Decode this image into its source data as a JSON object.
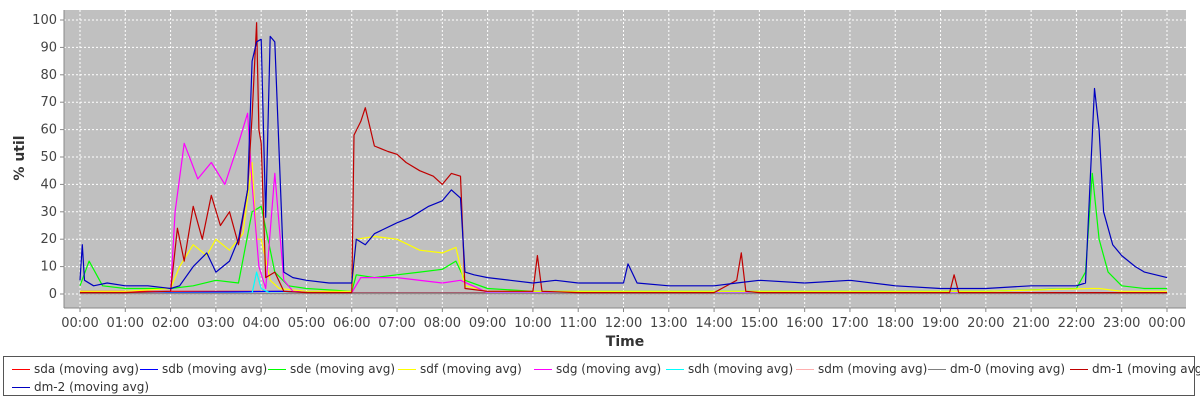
{
  "chart_data": {
    "type": "line",
    "xlabel": "Time",
    "ylabel": "% util",
    "ylim": [
      0,
      100
    ],
    "xlim": [
      0,
      24
    ],
    "x_tick_labels": [
      "00:00",
      "01:00",
      "02:00",
      "03:00",
      "04:00",
      "05:00",
      "06:00",
      "07:00",
      "08:00",
      "09:00",
      "10:00",
      "11:00",
      "12:00",
      "13:00",
      "14:00",
      "15:00",
      "16:00",
      "17:00",
      "18:00",
      "19:00",
      "20:00",
      "21:00",
      "22:00",
      "23:00",
      "00:00"
    ],
    "y_tick_labels": [
      "0",
      "10",
      "20",
      "30",
      "40",
      "50",
      "60",
      "70",
      "80",
      "90",
      "100"
    ],
    "grid": true,
    "background": "#c0c0c0",
    "legend_position": "bottom",
    "series": [
      {
        "name": "sda (moving avg)",
        "color": "#ff0000",
        "x": [
          0,
          2.0,
          3.5,
          4.4,
          6.0,
          8.5,
          12,
          16,
          20,
          24
        ],
        "y": [
          1,
          1,
          1,
          1,
          0.5,
          0.5,
          0.5,
          0.5,
          0.5,
          0.5
        ]
      },
      {
        "name": "sdb (moving avg)",
        "color": "#0000ff",
        "x": [
          0,
          1.0,
          2.0,
          4.4,
          6.0,
          8.5,
          12,
          16,
          20,
          24
        ],
        "y": [
          0.3,
          0.3,
          0.5,
          1,
          0.3,
          0.3,
          0.3,
          0.3,
          0.3,
          0.3
        ]
      },
      {
        "name": "sde (moving avg)",
        "color": "#00ff00",
        "x": [
          0,
          0.2,
          0.5,
          1.0,
          2.0,
          2.5,
          3.0,
          3.5,
          3.8,
          4.0,
          4.3,
          4.6,
          5.0,
          6.0,
          6.1,
          6.5,
          7.0,
          7.5,
          8.0,
          8.3,
          8.5,
          9.0,
          10.0,
          12.0,
          14.0,
          16.0,
          18.0,
          20.0,
          22.0,
          22.2,
          22.35,
          22.5,
          22.7,
          23.0,
          23.5,
          24.0
        ],
        "y": [
          3,
          12,
          3,
          2,
          2,
          3,
          5,
          4,
          30,
          32,
          8,
          3,
          2,
          1,
          7,
          6,
          7,
          8,
          9,
          12,
          5,
          2,
          1,
          1,
          1,
          1,
          1,
          1,
          2,
          8,
          44,
          20,
          8,
          3,
          2,
          2
        ]
      },
      {
        "name": "sdf (moving avg)",
        "color": "#ffff00",
        "x": [
          0,
          1.0,
          2.0,
          2.2,
          2.5,
          2.8,
          3.0,
          3.3,
          3.6,
          3.8,
          3.9,
          4.0,
          4.2,
          4.4,
          5.0,
          6.0,
          6.1,
          6.5,
          7.0,
          7.5,
          8.0,
          8.3,
          8.5,
          9.0,
          12.0,
          16.0,
          20.0,
          22.3,
          22.5,
          23.0,
          24.0
        ],
        "y": [
          1,
          1,
          2,
          10,
          18,
          14,
          20,
          16,
          22,
          48,
          20,
          20,
          5,
          2,
          1,
          1,
          20,
          21,
          20,
          16,
          15,
          17,
          3,
          1,
          1,
          1,
          1,
          2,
          2,
          1,
          1
        ]
      },
      {
        "name": "sdg (moving avg)",
        "color": "#ff00ff",
        "x": [
          0,
          1.0,
          2.0,
          2.1,
          2.3,
          2.6,
          2.9,
          3.2,
          3.5,
          3.7,
          3.8,
          3.95,
          4.1,
          4.3,
          4.5,
          4.7,
          5.0,
          6.0,
          6.2,
          7.0,
          8.0,
          8.4,
          9.0,
          12.0,
          16.0,
          20.0,
          24.0
        ],
        "y": [
          0.5,
          0.5,
          1,
          30,
          55,
          42,
          48,
          40,
          55,
          66,
          40,
          10,
          2,
          44,
          5,
          1,
          0.5,
          0.5,
          6,
          6,
          4,
          5,
          0.5,
          0.5,
          0.5,
          0.5,
          0.5
        ]
      },
      {
        "name": "sdh (moving avg)",
        "color": "#00ffff",
        "x": [
          0,
          3.8,
          3.9,
          4.0,
          4.2,
          12.0,
          24.0
        ],
        "y": [
          0.3,
          0.3,
          8,
          2,
          0.3,
          0.3,
          0.3
        ]
      },
      {
        "name": "sdm (moving avg)",
        "color": "#ffafaf",
        "x": [
          0,
          24
        ],
        "y": [
          0.2,
          0.2
        ]
      },
      {
        "name": "dm-0 (moving avg)",
        "color": "#808080",
        "x": [
          0,
          24
        ],
        "y": [
          0.1,
          0.1
        ]
      },
      {
        "name": "dm-1 (moving avg)",
        "color": "#c00000",
        "x": [
          0,
          1.0,
          2.0,
          2.15,
          2.3,
          2.5,
          2.7,
          2.9,
          3.1,
          3.3,
          3.5,
          3.7,
          3.8,
          3.9,
          3.95,
          4.0,
          4.1,
          4.3,
          4.5,
          5.0,
          6.0,
          6.05,
          6.2,
          6.3,
          6.5,
          6.8,
          7.0,
          7.2,
          7.5,
          7.8,
          8.0,
          8.2,
          8.4,
          8.5,
          9.0,
          10.0,
          10.1,
          10.2,
          11.0,
          12.0,
          14.0,
          14.5,
          14.6,
          14.7,
          15.0,
          18.0,
          19.2,
          19.3,
          19.4,
          20.0,
          24.0
        ],
        "y": [
          0.5,
          0.5,
          1,
          24,
          12,
          32,
          20,
          36,
          25,
          30,
          18,
          38,
          65,
          99,
          60,
          55,
          6,
          8,
          1,
          0.5,
          0.5,
          58,
          63,
          68,
          54,
          52,
          51,
          48,
          45,
          43,
          40,
          44,
          43,
          2,
          1,
          1,
          14,
          1,
          0.5,
          0.5,
          0.5,
          5,
          15,
          1,
          0.5,
          0.5,
          0.5,
          7,
          0.5,
          0.5,
          0.5
        ]
      },
      {
        "name": "dm-2 (moving avg)",
        "color": "#0000c0",
        "x": [
          0,
          0.05,
          0.1,
          0.3,
          0.6,
          1.0,
          1.5,
          2.0,
          2.2,
          2.5,
          2.8,
          3.0,
          3.3,
          3.5,
          3.7,
          3.8,
          3.9,
          4.0,
          4.1,
          4.2,
          4.3,
          4.5,
          4.7,
          5.0,
          5.5,
          6.0,
          6.1,
          6.3,
          6.5,
          7.0,
          7.3,
          7.5,
          7.7,
          8.0,
          8.2,
          8.4,
          8.5,
          8.7,
          9.0,
          9.5,
          10.0,
          10.5,
          11.0,
          11.5,
          12.0,
          12.1,
          12.3,
          13.0,
          14.0,
          14.5,
          15.0,
          16.0,
          17.0,
          18.0,
          19.0,
          20.0,
          21.0,
          22.0,
          22.2,
          22.3,
          22.4,
          22.5,
          22.6,
          22.8,
          23.0,
          23.3,
          23.5,
          24.0
        ],
        "y": [
          5,
          18,
          5,
          3,
          4,
          3,
          3,
          2,
          3,
          10,
          15,
          8,
          12,
          20,
          38,
          85,
          92,
          93,
          28,
          94,
          92,
          8,
          6,
          5,
          4,
          4,
          20,
          18,
          22,
          26,
          28,
          30,
          32,
          34,
          38,
          35,
          8,
          7,
          6,
          5,
          4,
          5,
          4,
          4,
          4,
          11,
          4,
          3,
          3,
          4,
          5,
          4,
          5,
          3,
          2,
          2,
          3,
          3,
          4,
          40,
          75,
          60,
          30,
          18,
          14,
          10,
          8,
          6
        ]
      }
    ]
  }
}
